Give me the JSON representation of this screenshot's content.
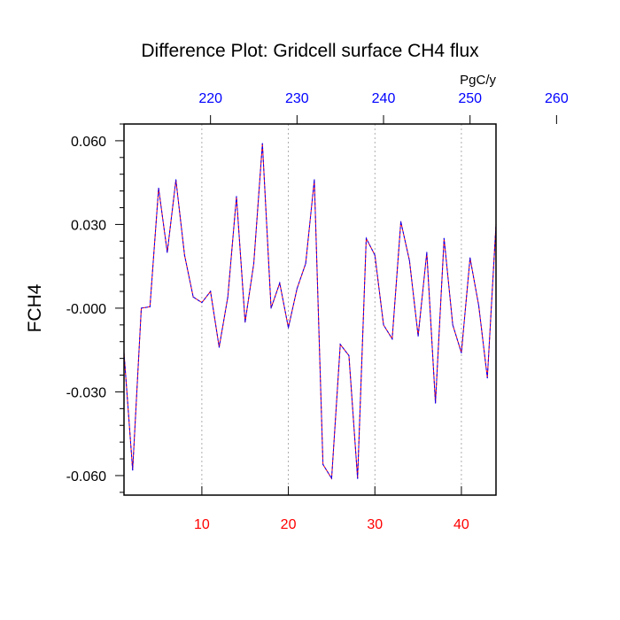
{
  "chart_data": {
    "type": "line",
    "title": "Difference Plot: Gridcell surface CH4 flux",
    "units": "PgC/y",
    "ylabel": "FCH4",
    "xlabel": "",
    "xlim": [
      1,
      44
    ],
    "ylim": [
      -0.067,
      0.066
    ],
    "y_ticks": [
      -0.06,
      -0.03,
      0.0,
      0.03,
      0.06
    ],
    "y_tick_labels": [
      "-0.060",
      "-0.030",
      "-0.000",
      "0.030",
      "0.060"
    ],
    "x_ticks": [
      10,
      20,
      30,
      40
    ],
    "x_tick_labels": [
      "10",
      "20",
      "30",
      "40"
    ],
    "x_tick_color": "#ff0000",
    "top_axis": {
      "ticks": [
        220,
        230,
        240,
        250,
        260
      ],
      "tick_labels": [
        "220",
        "230",
        "240",
        "250",
        "260"
      ],
      "offset": 209,
      "color": "#0000ff"
    },
    "grid": "vertical-dotted",
    "series": [
      {
        "color_a": "#ff0000",
        "color_b": "#0000ff",
        "dashed": true,
        "x": [
          1,
          2,
          3,
          4,
          5,
          6,
          7,
          8,
          9,
          10,
          11,
          12,
          13,
          14,
          15,
          16,
          17,
          18,
          19,
          20,
          21,
          22,
          23,
          24,
          25,
          26,
          27,
          28,
          29,
          30,
          31,
          32,
          33,
          34,
          35,
          36,
          37,
          38,
          39,
          40,
          41,
          42,
          43,
          44
        ],
        "y": [
          -0.016,
          -0.058,
          0.0,
          0.0005,
          0.043,
          0.02,
          0.046,
          0.019,
          0.004,
          0.002,
          0.006,
          -0.014,
          0.004,
          0.04,
          -0.005,
          0.016,
          0.059,
          0.0,
          0.009,
          -0.007,
          0.007,
          0.016,
          0.046,
          -0.056,
          -0.061,
          -0.013,
          -0.017,
          -0.061,
          0.025,
          0.019,
          -0.006,
          -0.011,
          0.031,
          0.017,
          -0.01,
          0.02,
          -0.034,
          0.025,
          -0.006,
          -0.016,
          0.018,
          0.001,
          -0.025,
          0.03
        ]
      }
    ]
  }
}
